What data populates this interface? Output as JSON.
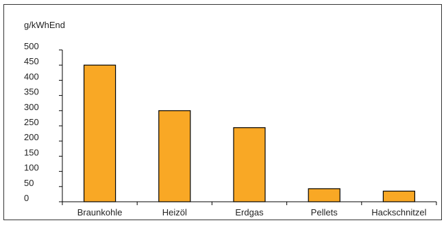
{
  "chart_data": {
    "type": "bar",
    "title": "",
    "ylabel": "g/kWhEnd",
    "xlabel": "",
    "categories": [
      "Braunkohle",
      "Heizöl",
      "Erdgas",
      "Pellets",
      "Hackschnitzel"
    ],
    "values": [
      450,
      300,
      244,
      43,
      35
    ],
    "ylim": [
      0,
      500
    ],
    "yticks": [
      0,
      50,
      100,
      150,
      200,
      250,
      300,
      350,
      400,
      450,
      500
    ],
    "grid": false,
    "legend": "none",
    "bar_color": "#F9A825",
    "bar_border_color": "#000000"
  }
}
